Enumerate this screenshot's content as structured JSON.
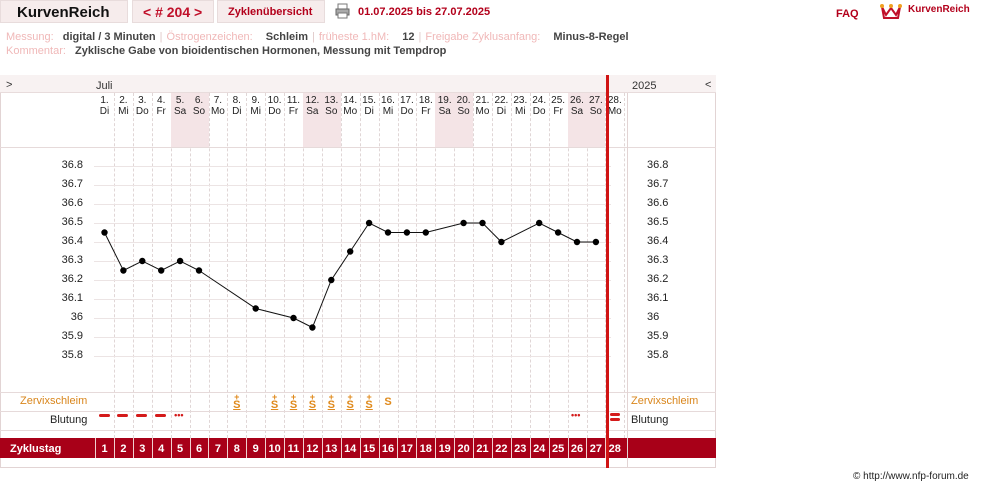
{
  "header": {
    "brand": "KurvenReich",
    "cycle_number": "< # 204 >",
    "overview_label": "Zyklenübersicht",
    "date_range": "01.07.2025 bis 27.07.2025",
    "faq_label": "FAQ",
    "logo_text": "KurvenReich"
  },
  "info": {
    "measurement_label": "Messung:",
    "measurement_value": "digital / 3 Minuten",
    "estrogen_label": "Östrogenzeichen:",
    "estrogen_value": "Schleim",
    "earliest_label": "früheste 1.hM:",
    "earliest_value": "12",
    "release_label": "Freigabe Zyklusanfang:",
    "release_value": "Minus-8-Regel",
    "comment_label": "Kommentar:",
    "comment_value": "Zyklische Gabe von bioidentischen Hormonen, Messung mit Tempdrop"
  },
  "nav": {
    "prev": ">",
    "next": "<"
  },
  "chart_data": {
    "type": "line",
    "month": "Juli",
    "year": "2025",
    "days": [
      {
        "d": "1.",
        "w": "Di"
      },
      {
        "d": "2.",
        "w": "Mi"
      },
      {
        "d": "3.",
        "w": "Do"
      },
      {
        "d": "4.",
        "w": "Fr"
      },
      {
        "d": "5.",
        "w": "Sa"
      },
      {
        "d": "6.",
        "w": "So"
      },
      {
        "d": "7.",
        "w": "Mo"
      },
      {
        "d": "8.",
        "w": "Di"
      },
      {
        "d": "9.",
        "w": "Mi"
      },
      {
        "d": "10.",
        "w": "Do"
      },
      {
        "d": "11.",
        "w": "Fr"
      },
      {
        "d": "12.",
        "w": "Sa"
      },
      {
        "d": "13.",
        "w": "So"
      },
      {
        "d": "14.",
        "w": "Mo"
      },
      {
        "d": "15.",
        "w": "Di"
      },
      {
        "d": "16.",
        "w": "Mi"
      },
      {
        "d": "17.",
        "w": "Do"
      },
      {
        "d": "18.",
        "w": "Fr"
      },
      {
        "d": "19.",
        "w": "Sa"
      },
      {
        "d": "20.",
        "w": "So"
      },
      {
        "d": "21.",
        "w": "Mo"
      },
      {
        "d": "22.",
        "w": "Di"
      },
      {
        "d": "23.",
        "w": "Mi"
      },
      {
        "d": "24.",
        "w": "Do"
      },
      {
        "d": "25.",
        "w": "Fr"
      },
      {
        "d": "26.",
        "w": "Sa"
      },
      {
        "d": "27.",
        "w": "So"
      },
      {
        "d": "28.",
        "w": "Mo"
      }
    ],
    "yticks": [
      "36.8",
      "36.7",
      "36.6",
      "36.5",
      "36.4",
      "36.3",
      "36.2",
      "36.1",
      "36",
      "35.9",
      "35.8"
    ],
    "ylim": [
      35.7,
      36.85
    ],
    "temperatures": [
      {
        "day": 1,
        "t": 36.45
      },
      {
        "day": 2,
        "t": 36.25
      },
      {
        "day": 3,
        "t": 36.3
      },
      {
        "day": 4,
        "t": 36.25
      },
      {
        "day": 5,
        "t": 36.3
      },
      {
        "day": 6,
        "t": 36.25
      },
      {
        "day": 9,
        "t": 36.05
      },
      {
        "day": 11,
        "t": 36.0
      },
      {
        "day": 12,
        "t": 35.95
      },
      {
        "day": 13,
        "t": 36.2
      },
      {
        "day": 14,
        "t": 36.35
      },
      {
        "day": 15,
        "t": 36.5
      },
      {
        "day": 16,
        "t": 36.45
      },
      {
        "day": 17,
        "t": 36.45
      },
      {
        "day": 18,
        "t": 36.45
      },
      {
        "day": 20,
        "t": 36.5
      },
      {
        "day": 21,
        "t": 36.5
      },
      {
        "day": 22,
        "t": 36.4
      },
      {
        "day": 24,
        "t": 36.5
      },
      {
        "day": 25,
        "t": 36.45
      },
      {
        "day": 26,
        "t": 36.4
      },
      {
        "day": 27,
        "t": 36.4
      }
    ],
    "mucus": [
      {
        "day": 8,
        "s": "S+"
      },
      {
        "day": 10,
        "s": "S+"
      },
      {
        "day": 11,
        "s": "S+"
      },
      {
        "day": 12,
        "s": "S+"
      },
      {
        "day": 13,
        "s": "S+"
      },
      {
        "day": 14,
        "s": "S+"
      },
      {
        "day": 15,
        "s": "S+"
      },
      {
        "day": 16,
        "s": "S"
      }
    ],
    "bleeding": [
      {
        "day": 1,
        "k": "bar"
      },
      {
        "day": 2,
        "k": "bar"
      },
      {
        "day": 3,
        "k": "bar"
      },
      {
        "day": 4,
        "k": "bar"
      },
      {
        "day": 5,
        "k": "dots"
      },
      {
        "day": 26,
        "k": "dots"
      },
      {
        "day": 28,
        "k": "double"
      }
    ],
    "zyklustag": [
      1,
      2,
      3,
      4,
      5,
      6,
      7,
      8,
      9,
      10,
      11,
      12,
      13,
      14,
      15,
      16,
      17,
      18,
      19,
      20,
      21,
      22,
      23,
      24,
      25,
      26,
      27,
      28
    ]
  },
  "labels": {
    "mucus": "Zervixschleim",
    "bleeding": "Blutung",
    "cycle_day": "Zyklustag"
  },
  "colors": {
    "accent": "#b3001b",
    "bar": "#a80018",
    "mucus": "#d9861c",
    "weekend": "#f4e4e6"
  },
  "copyright": "© http://www.nfp-forum.de"
}
